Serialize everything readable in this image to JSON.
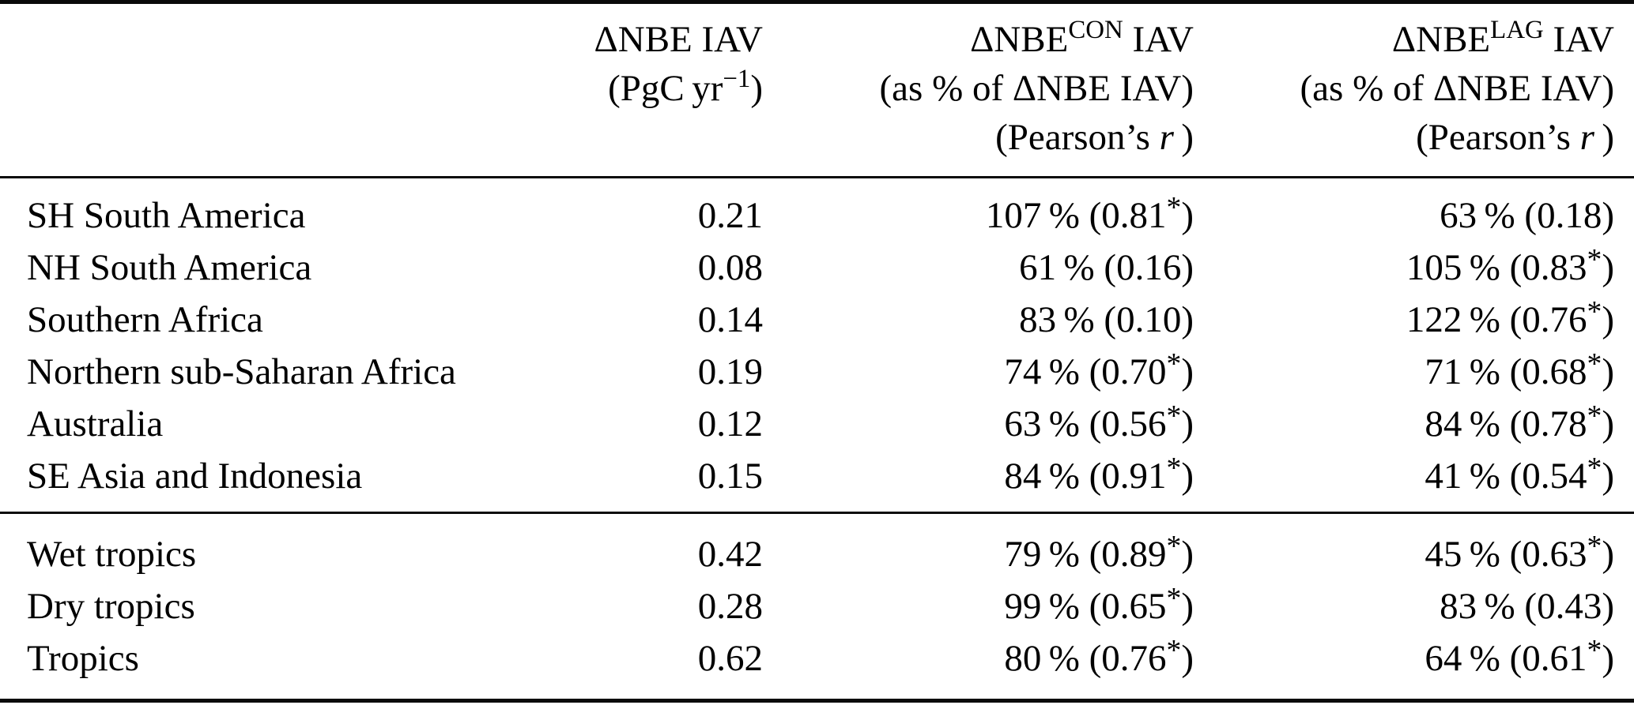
{
  "table": {
    "header": {
      "region_label": "",
      "iav": {
        "title": "ΔNBE IAV",
        "unit_pre": "(PgC yr",
        "unit_sup": "−1",
        "unit_close": ")"
      },
      "con": {
        "title_base": "ΔNBE",
        "title_sup": "CON",
        "title_rest": " IAV",
        "share_line": "(as % of ΔNBE IAV)",
        "pearson_pre": "(Pearson’s ",
        "pearson_var": "r",
        "pearson_close": " )"
      },
      "lag": {
        "title_base": "ΔNBE",
        "title_sup": "LAG",
        "title_rest": " IAV",
        "share_line": "(as % of ΔNBE IAV)",
        "pearson_pre": "(Pearson’s ",
        "pearson_var": "r",
        "pearson_close": " )"
      }
    },
    "groups": [
      {
        "rows": [
          {
            "region": "SH South America",
            "iav": "0.21",
            "con": "107 % (0.81*)",
            "lag": "63 % (0.18)"
          },
          {
            "region": "NH South America",
            "iav": "0.08",
            "con": "61 % (0.16)",
            "lag": "105 % (0.83*)"
          },
          {
            "region": "Southern Africa",
            "iav": "0.14",
            "con": "83 % (0.10)",
            "lag": "122 % (0.76*)"
          },
          {
            "region": "Northern sub-Saharan Africa",
            "iav": "0.19",
            "con": "74 % (0.70*)",
            "lag": "71 % (0.68*)"
          },
          {
            "region": "Australia",
            "iav": "0.12",
            "con": "63 % (0.56*)",
            "lag": "84 % (0.78*)"
          },
          {
            "region": "SE Asia and Indonesia",
            "iav": "0.15",
            "con": "84 % (0.91*)",
            "lag": "41 % (0.54*)"
          }
        ]
      },
      {
        "rows": [
          {
            "region": "Wet tropics",
            "iav": "0.42",
            "con": "79 % (0.89*)",
            "lag": "45 % (0.63*)"
          },
          {
            "region": "Dry tropics",
            "iav": "0.28",
            "con": "99 % (0.65*)",
            "lag": "83 % (0.43)"
          },
          {
            "region": "Tropics",
            "iav": "0.62",
            "con": "80 % (0.76*)",
            "lag": "64 % (0.61*)"
          }
        ]
      }
    ]
  }
}
